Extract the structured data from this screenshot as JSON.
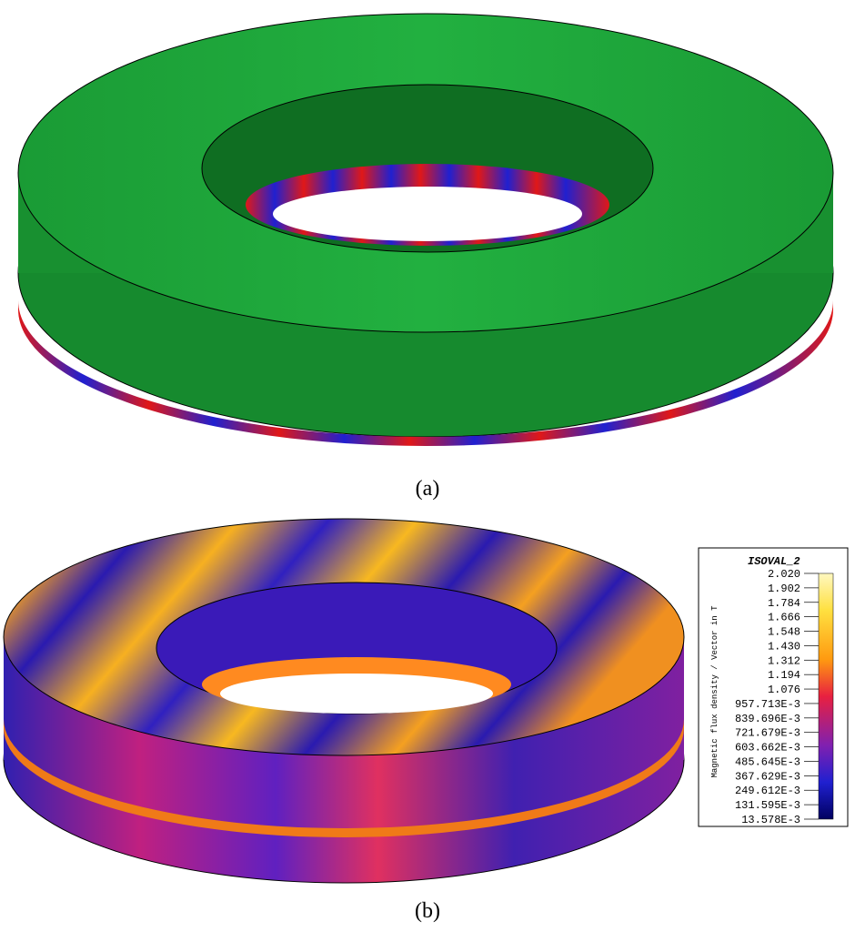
{
  "figure": {
    "panel_a": {
      "caption": "(a)"
    },
    "panel_b": {
      "caption": "(b)",
      "legend": {
        "title": "ISOVAL_2",
        "axis_label": "Magnetic flux density / Vector in T",
        "labels": [
          "2.020",
          "1.902",
          "1.784",
          "1.666",
          "1.548",
          "1.430",
          "1.312",
          "1.194",
          "1.076",
          "957.713E-3",
          "839.696E-3",
          "721.679E-3",
          "603.662E-3",
          "485.645E-3",
          "367.629E-3",
          "249.612E-3",
          "131.595E-3",
          "13.578E-3"
        ]
      }
    }
  }
}
